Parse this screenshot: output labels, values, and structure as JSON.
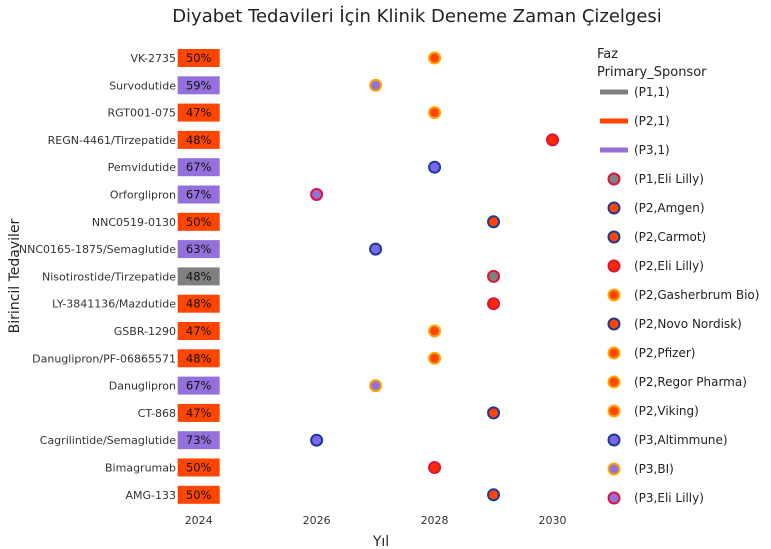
{
  "chart_data": {
    "type": "timeline",
    "title": "Diyabet Tedavileri İçin Klinik Deneme Zaman Çizelgesi",
    "xlabel": "Yıl",
    "ylabel": "Birincil Tedaviler",
    "xlim": [
      2023.7,
      2030.5
    ],
    "xticks": [
      2024,
      2026,
      2028,
      2030
    ],
    "grid": false,
    "legend": {
      "position": "right",
      "title_lines": [
        "Faz",
        "Primary_Sponsor"
      ],
      "line_entries": [
        {
          "label": "(P1,1)",
          "color": "#808080"
        },
        {
          "label": "(P2,1)",
          "color": "#FF4500"
        },
        {
          "label": "(P3,1)",
          "color": "#9370DB"
        }
      ],
      "marker_entries": [
        {
          "label": "(P1,Eli Lilly)",
          "fill": "#808080",
          "edge": "#DC143C"
        },
        {
          "label": "(P2,Amgen)",
          "fill": "#FF4500",
          "edge": "#1F3A93"
        },
        {
          "label": "(P2,Carmot)",
          "fill": "#FF4500",
          "edge": "#1F3A93"
        },
        {
          "label": "(P2,Eli Lilly)",
          "fill": "#FF2A00",
          "edge": "#DC143C"
        },
        {
          "label": "(P2,Gasherbrum Bio)",
          "fill": "#FF4500",
          "edge": "#FFA500"
        },
        {
          "label": "(P2,Novo Nordisk)",
          "fill": "#FF4500",
          "edge": "#1F3A93"
        },
        {
          "label": "(P2,Pfizer)",
          "fill": "#FF4500",
          "edge": "#FFA500"
        },
        {
          "label": "(P2,Regor Pharma)",
          "fill": "#FF4500",
          "edge": "#FFA500"
        },
        {
          "label": "(P2,Viking)",
          "fill": "#FF4500",
          "edge": "#FFA500"
        },
        {
          "label": "(P3,Altimmune)",
          "fill": "#7B68EE",
          "edge": "#1F3A93"
        },
        {
          "label": "(P3,BI)",
          "fill": "#9370DB",
          "edge": "#FFA500"
        },
        {
          "label": "(P3,Eli Lilly)",
          "fill": "#9370DB",
          "edge": "#DC143C"
        }
      ]
    },
    "rows": [
      {
        "name": "VK-2735",
        "start": 2024,
        "percent": "50%",
        "phase": "P2",
        "end": 2028
      },
      {
        "name": "Survodutide",
        "start": 2024,
        "percent": "59%",
        "phase": "P3",
        "end": 2027
      },
      {
        "name": "RGT001-075",
        "start": 2024,
        "percent": "47%",
        "phase": "P2",
        "end": 2028
      },
      {
        "name": "REGN-4461/Tirzepatide",
        "start": 2024,
        "percent": "48%",
        "phase": "P2",
        "end": 2030
      },
      {
        "name": "Pemvidutide",
        "start": 2024,
        "percent": "67%",
        "phase": "P3",
        "end": 2028
      },
      {
        "name": "Orforglipron",
        "start": 2024,
        "percent": "67%",
        "phase": "P3",
        "end": 2026
      },
      {
        "name": "NNC0519-0130",
        "start": 2024,
        "percent": "50%",
        "phase": "P2",
        "end": 2029
      },
      {
        "name": "NNC0165-1875/Semaglutide",
        "start": 2024,
        "percent": "63%",
        "phase": "P3",
        "end": 2027
      },
      {
        "name": "Nisotirostide/Tirzepatide",
        "start": 2024,
        "percent": "48%",
        "phase": "P1",
        "end": 2029
      },
      {
        "name": "LY-3841136/Mazdutide",
        "start": 2024,
        "percent": "48%",
        "phase": "P2",
        "end": 2029
      },
      {
        "name": "GSBR-1290",
        "start": 2024,
        "percent": "47%",
        "phase": "P2",
        "end": 2028
      },
      {
        "name": "Danuglipron/PF-06865571",
        "start": 2024,
        "percent": "48%",
        "phase": "P2",
        "end": 2028
      },
      {
        "name": "Danuglipron",
        "start": 2024,
        "percent": "67%",
        "phase": "P3",
        "end": 2027
      },
      {
        "name": "CT-868",
        "start": 2024,
        "percent": "47%",
        "phase": "P2",
        "end": 2029
      },
      {
        "name": "Cagrilintide/Semaglutide",
        "start": 2024,
        "percent": "73%",
        "phase": "P3",
        "end": 2026
      },
      {
        "name": "Bimagrumab",
        "start": 2024,
        "percent": "50%",
        "phase": "P2",
        "end": 2028
      },
      {
        "name": "AMG-133",
        "start": 2024,
        "percent": "50%",
        "phase": "P2",
        "end": 2029
      }
    ],
    "markers": [
      {
        "row": 0,
        "x": 2028,
        "legend": 8
      },
      {
        "row": 1,
        "x": 2027,
        "legend": 10
      },
      {
        "row": 2,
        "x": 2028,
        "legend": 7
      },
      {
        "row": 3,
        "x": 2030,
        "legend": 3
      },
      {
        "row": 4,
        "x": 2028,
        "legend": 9
      },
      {
        "row": 5,
        "x": 2026,
        "legend": 11
      },
      {
        "row": 6,
        "x": 2029,
        "legend": 5
      },
      {
        "row": 7,
        "x": 2027,
        "legend": 9
      },
      {
        "row": 8,
        "x": 2029,
        "legend": 0
      },
      {
        "row": 9,
        "x": 2029,
        "legend": 3
      },
      {
        "row": 10,
        "x": 2028,
        "legend": 4
      },
      {
        "row": 11,
        "x": 2028,
        "legend": 6
      },
      {
        "row": 12,
        "x": 2027,
        "legend": 10
      },
      {
        "row": 13,
        "x": 2029,
        "legend": 2
      },
      {
        "row": 14,
        "x": 2026,
        "legend": 9
      },
      {
        "row": 15,
        "x": 2028,
        "legend": 3
      },
      {
        "row": 16,
        "x": 2029,
        "legend": 1
      }
    ],
    "phase_colors": {
      "P1": "#808080",
      "P2": "#FF4500",
      "P3": "#9370DB"
    }
  }
}
